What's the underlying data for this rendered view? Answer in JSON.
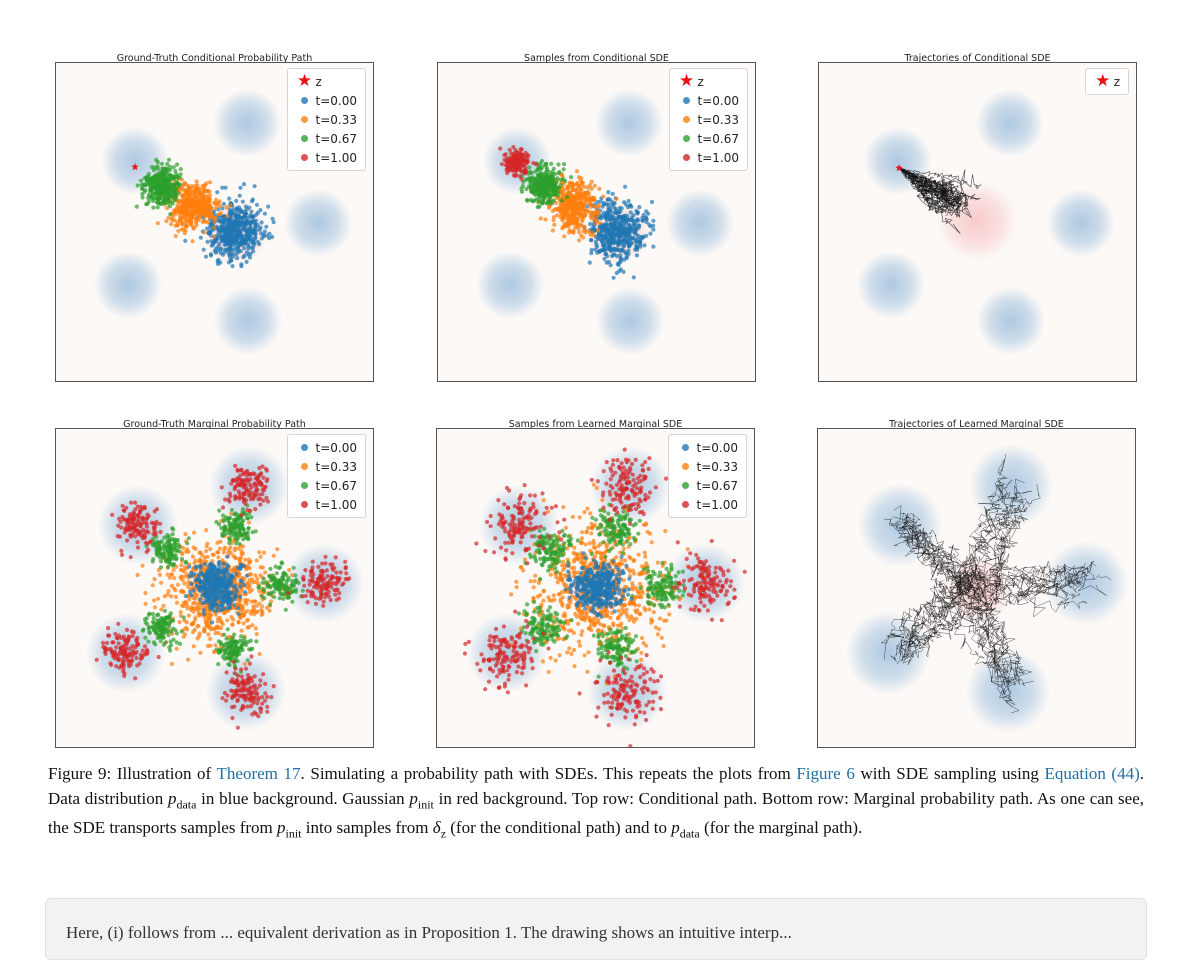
{
  "panels": [
    {
      "id": "p1",
      "title": "Ground-Truth Conditional Probability Path",
      "kind": "cond-samples",
      "red_at_z": false,
      "legend": [
        "z",
        "t=0.00",
        "t=0.33",
        "t=0.67",
        "t=1.00"
      ]
    },
    {
      "id": "p2",
      "title": "Samples from Conditional SDE",
      "kind": "cond-samples",
      "red_at_z": true,
      "legend": [
        "z",
        "t=0.00",
        "t=0.33",
        "t=0.67",
        "t=1.00"
      ]
    },
    {
      "id": "p3",
      "title": "Trajectories of Conditional SDE",
      "kind": "cond-traj",
      "legend": [
        "z"
      ]
    },
    {
      "id": "p4",
      "title": "Ground-Truth Marginal Probability Path",
      "kind": "marg-samples",
      "noisy": false,
      "legend": [
        "t=0.00",
        "t=0.33",
        "t=0.67",
        "t=1.00"
      ]
    },
    {
      "id": "p5",
      "title": "Samples from Learned Marginal SDE",
      "kind": "marg-samples",
      "noisy": true,
      "legend": [
        "t=0.00",
        "t=0.33",
        "t=0.67",
        "t=1.00"
      ]
    },
    {
      "id": "p6",
      "title": "Trajectories of Learned Marginal SDE",
      "kind": "marg-traj",
      "legend": []
    }
  ],
  "colors": {
    "t0": "#1f77b4",
    "t033": "#ff7f0e",
    "t067": "#2ca02c",
    "t1": "#d62728",
    "z": "#e8111a",
    "data_bg": "#a9c6e0",
    "init_bg": "#f7c6c6",
    "traj": "#111111",
    "frame_bg": "#fcf9f7",
    "link": "#1f6fa3"
  },
  "caption": {
    "s1": "Figure 9: Illustration of ",
    "link1": "Theorem 17",
    "s2": ". Simulating a probability path with SDEs. This repeats the plots from ",
    "link2": "Figure 6",
    "s3": " with SDE sampling using ",
    "link3": "Equation (44)",
    "s4": ". Data distribution ",
    "s5": " in blue background. Gaussian ",
    "s6": " in red background. Top row: Conditional path. Bottom row: Marginal probability path. As one can see, the SDE transports samples from ",
    "s7": " into samples from ",
    "s8": " (for the conditional path) and to ",
    "s9": " (for the marginal path).",
    "p_data": "p",
    "p_data_sub": "data",
    "p_init": "p",
    "p_init_sub": "init",
    "delta": "δ",
    "delta_sub": "z"
  },
  "next_paragraph": {
    "text": "Here, (i) follows from ... equivalent derivation as in Proposition 1. The drawing shows an intuitive interp..."
  }
}
